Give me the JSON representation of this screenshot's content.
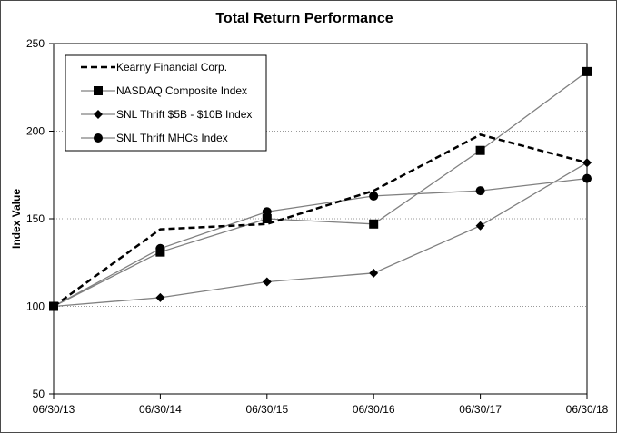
{
  "chart_data": {
    "type": "line",
    "title": "Total Return Performance",
    "xlabel": "",
    "ylabel": "Index Value",
    "categories": [
      "06/30/13",
      "06/30/14",
      "06/30/15",
      "06/30/16",
      "06/30/17",
      "06/30/18"
    ],
    "yticks": [
      "50",
      "100",
      "150",
      "200",
      "250"
    ],
    "ylim": [
      50,
      250
    ],
    "grid": "horizontal dotted",
    "legend_position": "top-left",
    "series": [
      {
        "name": "Kearny Financial Corp.",
        "values": [
          100,
          144,
          147,
          166,
          198,
          182
        ],
        "style": "dashed",
        "marker": "none",
        "color": "#000000"
      },
      {
        "name": "NASDAQ Composite Index",
        "values": [
          100,
          131,
          150,
          147,
          189,
          234
        ],
        "style": "solid",
        "marker": "square",
        "color": "#808080"
      },
      {
        "name": "SNL Thrift $5B - $10B Index",
        "values": [
          100,
          105,
          114,
          119,
          146,
          182
        ],
        "style": "solid",
        "marker": "diamond",
        "color": "#808080"
      },
      {
        "name": "SNL Thrift MHCs Index",
        "values": [
          100,
          133,
          154,
          163,
          166,
          173
        ],
        "style": "solid",
        "marker": "circle",
        "color": "#808080"
      }
    ]
  }
}
